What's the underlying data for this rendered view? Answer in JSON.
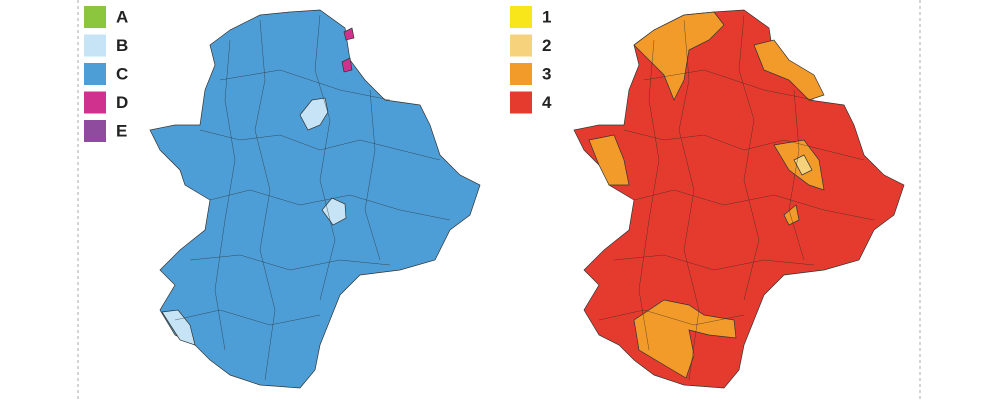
{
  "maps": [
    {
      "legend": [
        {
          "label": "A",
          "color": "#8cc63e"
        },
        {
          "label": "B",
          "color": "#c6e4f6"
        },
        {
          "label": "C",
          "color": "#4d9ed6"
        },
        {
          "label": "D",
          "color": "#d0318e"
        },
        {
          "label": "E",
          "color": "#8f4b9d"
        }
      ]
    },
    {
      "legend": [
        {
          "label": "1",
          "color": "#f8e61b"
        },
        {
          "label": "2",
          "color": "#f6d27c"
        },
        {
          "label": "3",
          "color": "#f39b2a"
        },
        {
          "label": "4",
          "color": "#e53b2f"
        }
      ]
    }
  ]
}
